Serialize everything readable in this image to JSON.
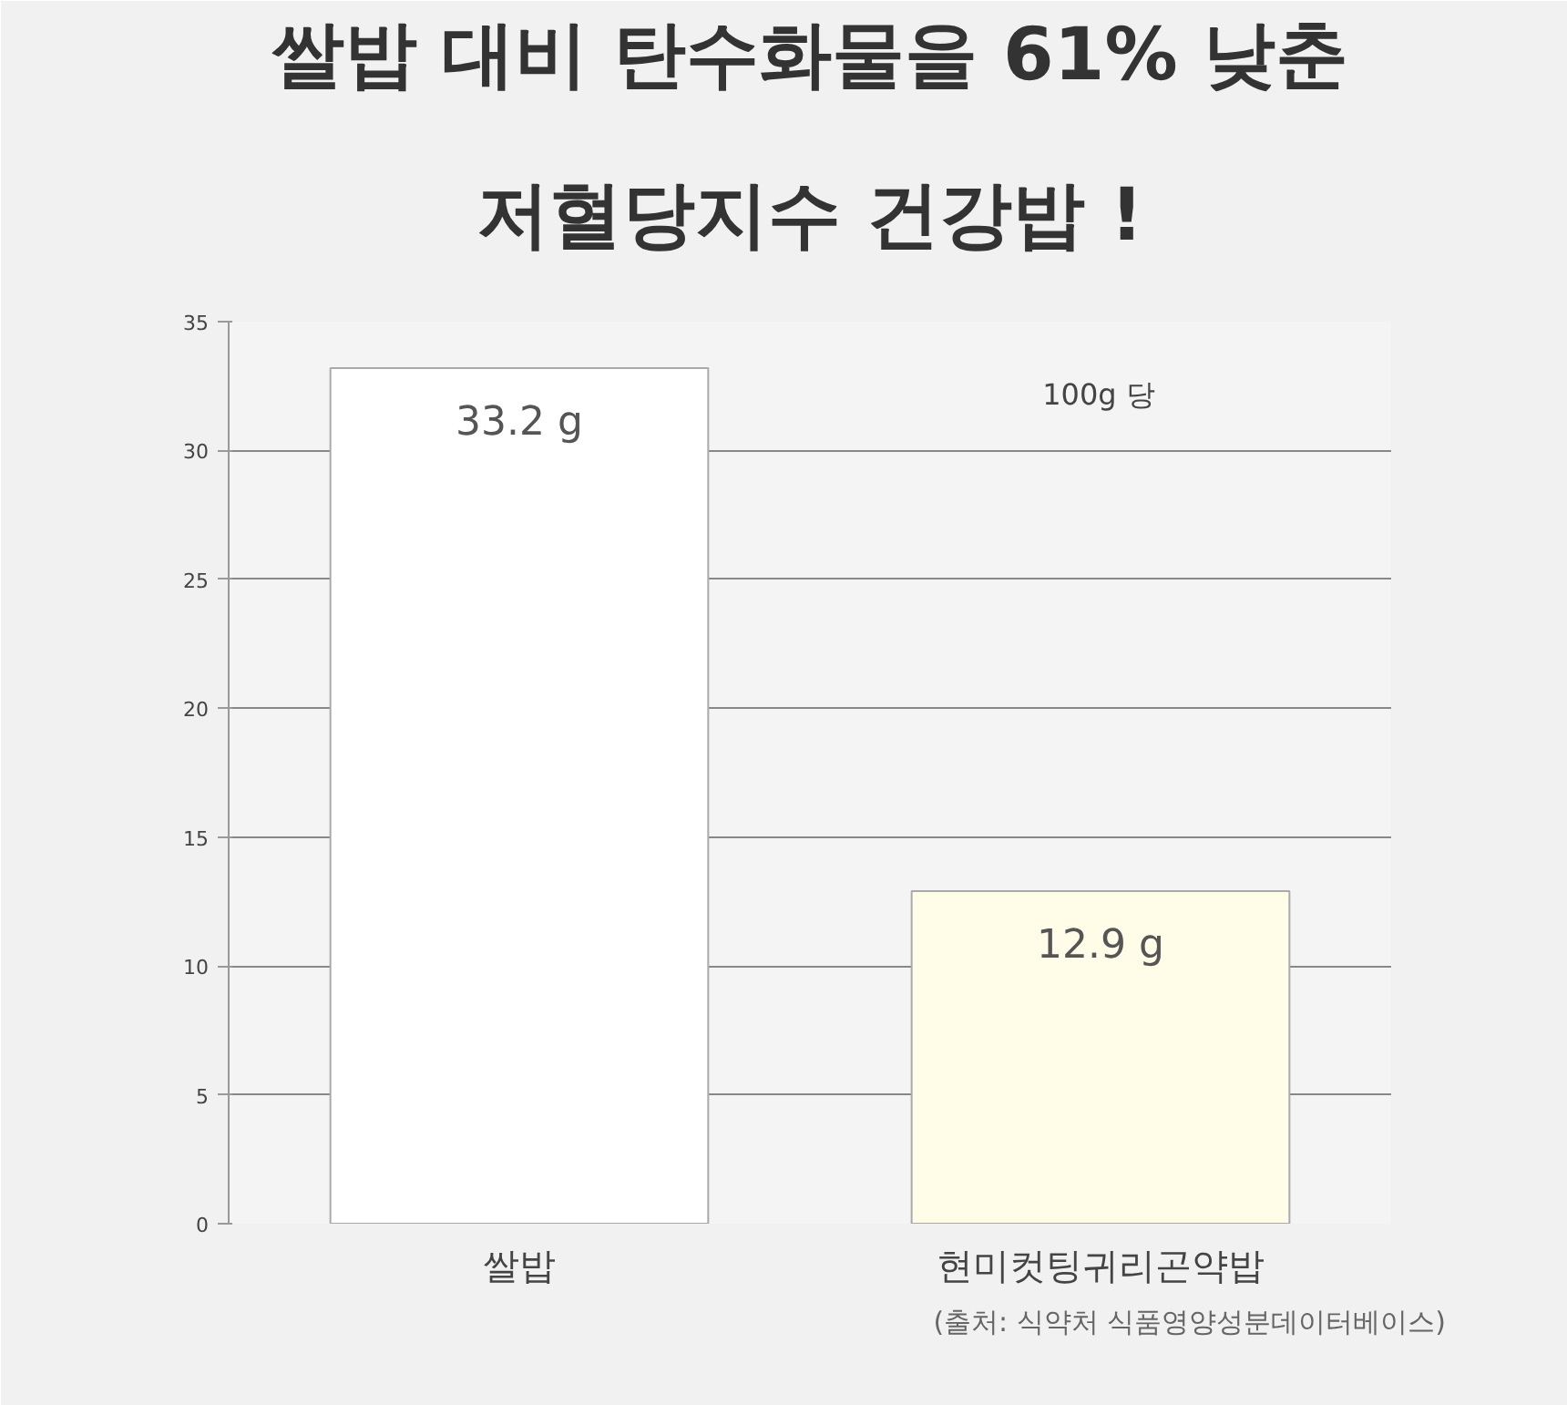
{
  "chart_data": {
    "type": "bar",
    "title": "쌀밥 대비 탄수화물을 61% 낮춘",
    "subtitle": "저혈당지수 건강밥 !",
    "categories": [
      "쌀밥",
      "현미컷팅귀리곤약밥"
    ],
    "values": [
      33.2,
      12.9
    ],
    "colors": [
      "#ffffff",
      "#fffde8"
    ],
    "value_labels": [
      "33.2 g",
      "12.9 g"
    ],
    "ylim": [
      0,
      35
    ],
    "yticks": [
      0,
      5,
      10,
      15,
      20,
      25,
      30,
      35
    ],
    "grid": "y",
    "annotations": [
      "100g 당",
      "(출처: 식약처 식품영양성분데이터베이스)"
    ]
  }
}
